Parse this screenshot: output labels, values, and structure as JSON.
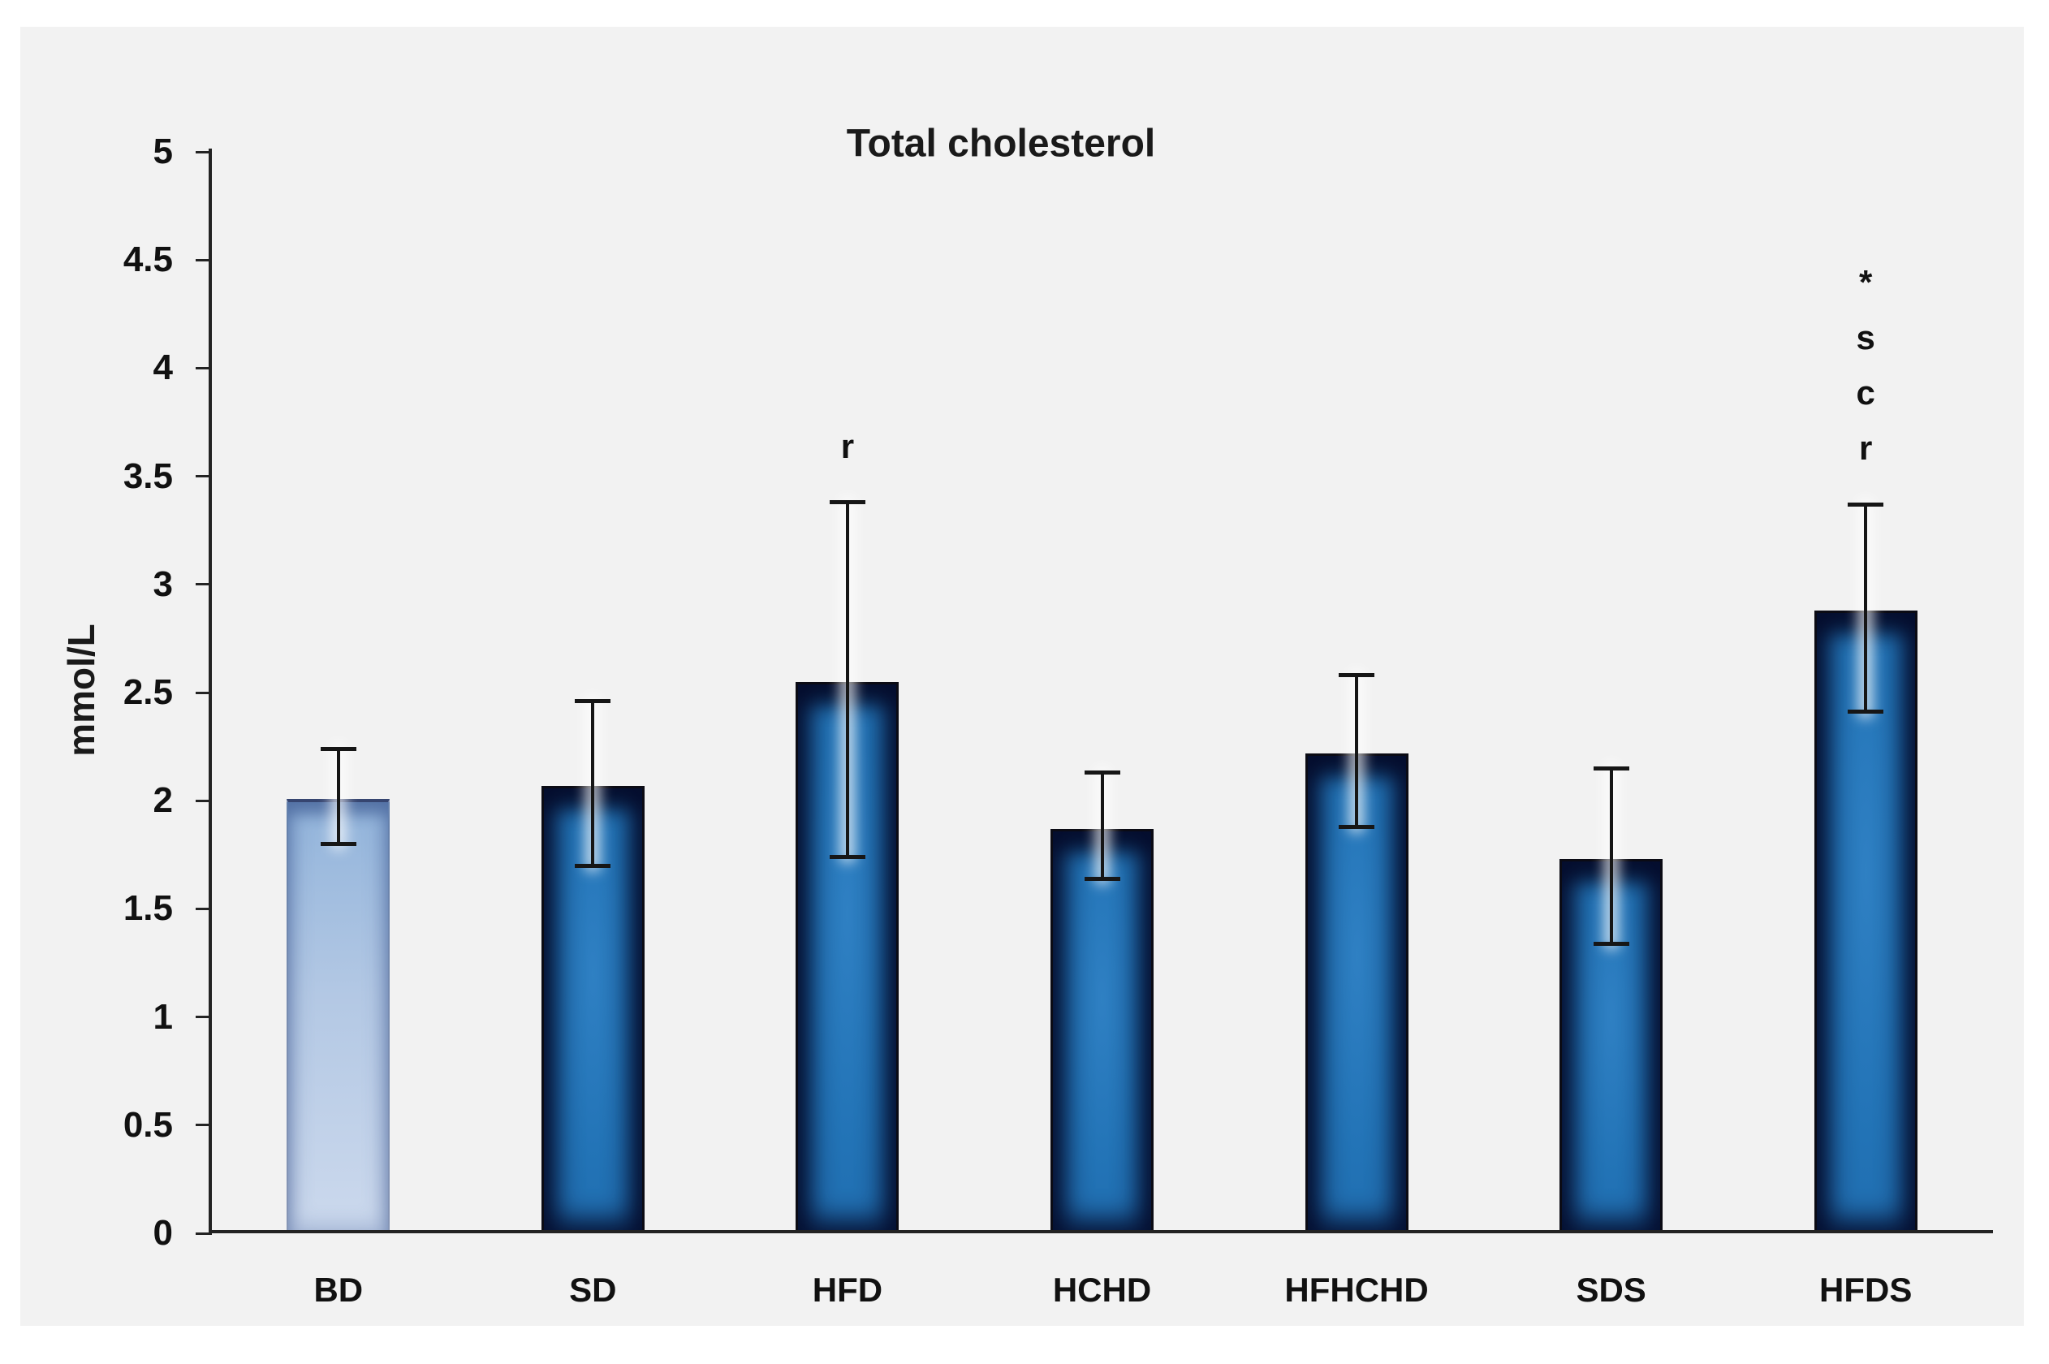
{
  "chart_data": {
    "type": "bar",
    "title": "Total cholesterol",
    "ylabel": "mmol/L",
    "xlabel": "",
    "categories": [
      "BD",
      "SD",
      "HFD",
      "HCHD",
      "HFHCHD",
      "SDS",
      "HFDS"
    ],
    "values": [
      2.01,
      2.07,
      2.55,
      1.87,
      2.22,
      1.73,
      2.88
    ],
    "error_upper": [
      2.24,
      2.46,
      3.38,
      2.13,
      2.58,
      2.15,
      3.37
    ],
    "error_lower": [
      1.8,
      1.7,
      1.74,
      1.64,
      1.88,
      1.34,
      2.41
    ],
    "ylim": [
      0,
      5
    ],
    "ytick_step": 0.5,
    "ytick_labels": [
      "0",
      "0.5",
      "1",
      "1.5",
      "2",
      "2.5",
      "3",
      "3.5",
      "4",
      "4.5",
      "5"
    ],
    "grid": false,
    "legend": null,
    "highlighted_bar": "BD",
    "annotations": [
      {
        "category": "HFD",
        "lines": [
          "r"
        ]
      },
      {
        "category": "HFDS",
        "lines": [
          "*",
          "s",
          "c",
          "r"
        ]
      }
    ],
    "colors": {
      "bar_fill": "#2273b6",
      "bar_fill_light": "#b7cbe5",
      "bar_edge": "#0b0b14",
      "error_bar": "#161616",
      "panel_background": "#f2f2f2",
      "text": "#111111"
    }
  }
}
